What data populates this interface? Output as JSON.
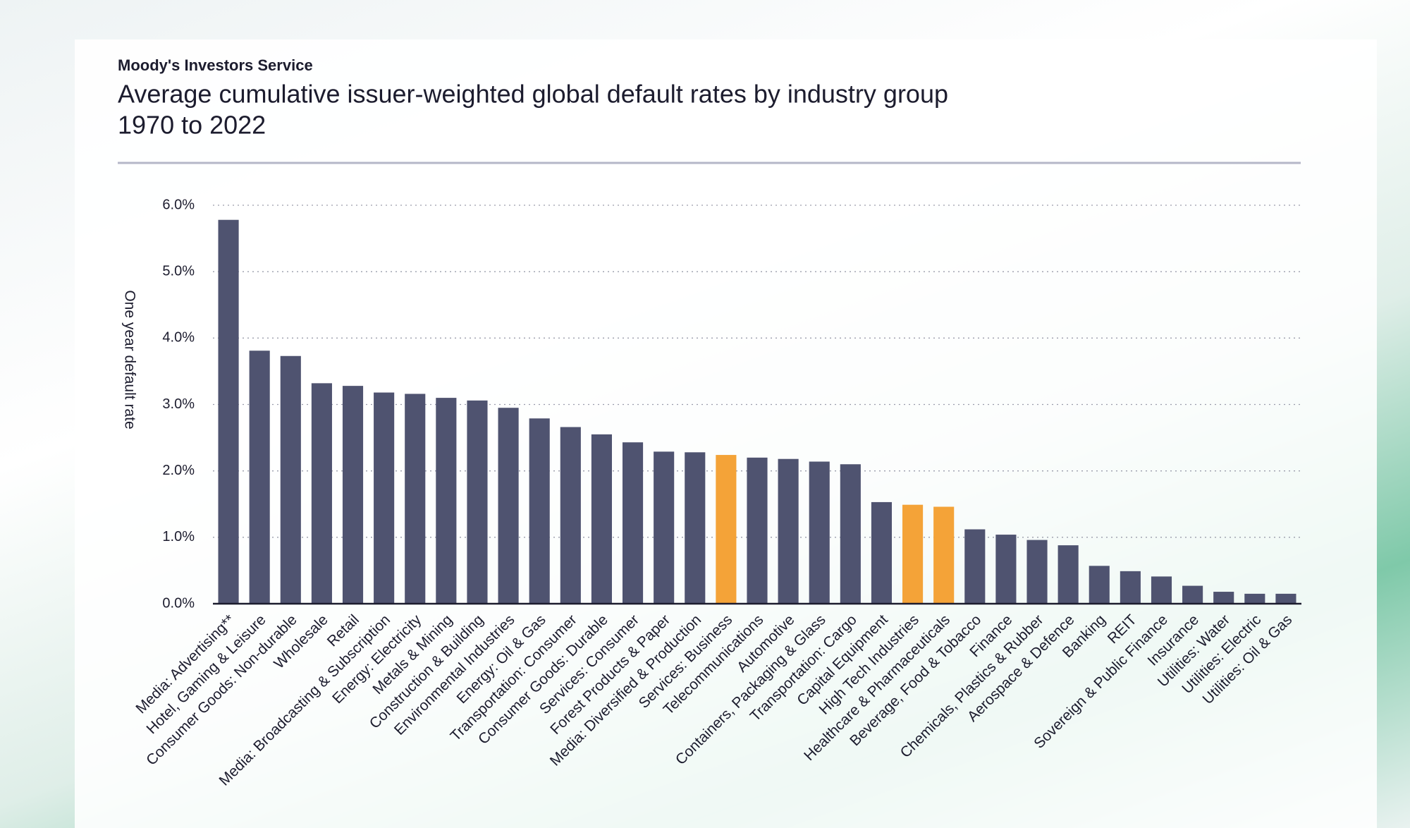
{
  "chart_data": {
    "type": "bar",
    "source": "Moody's Investors Service",
    "title": "Average cumulative issuer-weighted global default rates by industry group",
    "subtitle": "1970 to 2022",
    "y_label": "One year default rate",
    "categories": [
      "Media: Advertising**",
      "Hotel, Gaming & Leisure",
      "Consumer Goods: Non-durable",
      "Wholesale",
      "Retail",
      "Media: Broadcasting & Subscription",
      "Energy: Electricity",
      "Metals & Mining",
      "Construction & Building",
      "Environmental Industries",
      "Energy: Oil & Gas",
      "Transportation: Consumer",
      "Consumer Goods: Durable",
      "Services: Consumer",
      "Forest Products & Paper",
      "Media: Diversified & Production",
      "Services: Business",
      "Telecommunications",
      "Automotive",
      "Containers, Packaging & Glass",
      "Transportation: Cargo",
      "Capital Equipment",
      "High Tech Industries",
      "Healthcare & Pharmaceuticals",
      "Beverage, Food & Tobacco",
      "Finance",
      "Chemicals, Plastics & Rubber",
      "Aerospace & Defence",
      "Banking",
      "REIT",
      "Sovereign & Public Finance",
      "Insurance",
      "Utilities: Water",
      "Utilities: Electric",
      "Utilities: Oil & Gas"
    ],
    "values": [
      5.78,
      3.81,
      3.73,
      3.32,
      3.28,
      3.18,
      3.16,
      3.1,
      3.06,
      2.95,
      2.79,
      2.66,
      2.55,
      2.43,
      2.29,
      2.28,
      2.24,
      2.2,
      2.18,
      2.14,
      2.1,
      1.53,
      1.49,
      1.46,
      1.12,
      1.04,
      0.96,
      0.88,
      0.57,
      0.49,
      0.41,
      0.27,
      0.18,
      0.15,
      0.15
    ],
    "colors": [
      "#4f5370",
      "#4f5370",
      "#4f5370",
      "#4f5370",
      "#4f5370",
      "#4f5370",
      "#4f5370",
      "#4f5370",
      "#4f5370",
      "#4f5370",
      "#4f5370",
      "#4f5370",
      "#4f5370",
      "#4f5370",
      "#4f5370",
      "#4f5370",
      "#f4a338",
      "#4f5370",
      "#4f5370",
      "#4f5370",
      "#4f5370",
      "#4f5370",
      "#f4a338",
      "#f4a338",
      "#4f5370",
      "#4f5370",
      "#4f5370",
      "#4f5370",
      "#4f5370",
      "#4f5370",
      "#4f5370",
      "#4f5370",
      "#4f5370",
      "#4f5370",
      "#4f5370"
    ],
    "ylim": [
      0,
      6
    ],
    "yticks": [
      {
        "value": 0,
        "label": "0.0%"
      },
      {
        "value": 1,
        "label": "1.0%"
      },
      {
        "value": 2,
        "label": "2.0%"
      },
      {
        "value": 3,
        "label": "3.0%"
      },
      {
        "value": 4,
        "label": "4.0%"
      },
      {
        "value": 5,
        "label": "5.0%"
      },
      {
        "value": 6,
        "label": "6.0%"
      }
    ],
    "grid": true
  }
}
